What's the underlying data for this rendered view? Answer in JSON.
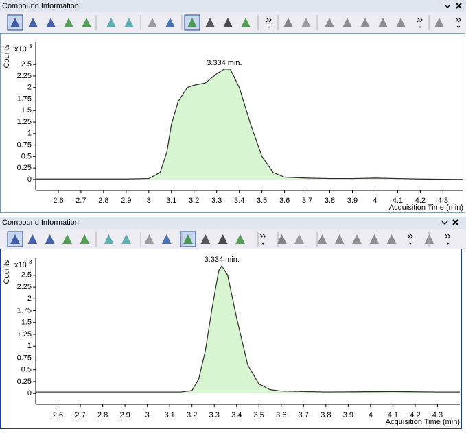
{
  "panels": [
    {
      "title": "Compound Information"
    },
    {
      "title": "Compound Information"
    }
  ],
  "chart_data": [
    {
      "type": "area",
      "y_label": "Counts",
      "y_scale_base": "x10",
      "y_scale_exponent": "3",
      "x_label": "Acquisition Time (min)",
      "peak_label": "3.334 min.",
      "color": "#2b2b2b",
      "fill": "#d6f5d0",
      "x": [
        2.5,
        2.9,
        3.0,
        3.05,
        3.08,
        3.1,
        3.13,
        3.17,
        3.2,
        3.25,
        3.3,
        3.334,
        3.36,
        3.4,
        3.45,
        3.5,
        3.55,
        3.6,
        3.7,
        3.8,
        3.9,
        4.0,
        4.1,
        4.2,
        4.39
      ],
      "values": [
        0.01,
        0.01,
        0.02,
        0.15,
        0.6,
        1.2,
        1.7,
        2.0,
        2.05,
        2.1,
        2.3,
        2.4,
        2.4,
        2.0,
        1.2,
        0.5,
        0.15,
        0.05,
        0.03,
        0.02,
        0.02,
        0.03,
        0.02,
        0.01,
        0.0
      ],
      "xlim": [
        2.5,
        4.39
      ],
      "ylim": [
        -0.24,
        2.98
      ],
      "xticks": [
        2.6,
        2.7,
        2.8,
        2.9,
        3,
        3.1,
        3.2,
        3.3,
        3.4,
        3.5,
        3.6,
        3.7,
        3.8,
        3.9,
        4,
        4.1,
        4.2,
        4.3
      ],
      "yticks": [
        0,
        0.25,
        0.5,
        0.75,
        1,
        1.25,
        1.5,
        1.75,
        2,
        2.25,
        2.5
      ]
    },
    {
      "type": "area",
      "y_label": "Counts",
      "y_scale_base": "x10",
      "y_scale_exponent": "3",
      "x_label": "Acquisition Time (min)",
      "peak_label": "3.334 min.",
      "color": "#2b2b2b",
      "fill": "#d6f5d0",
      "x": [
        2.5,
        3.15,
        3.2,
        3.23,
        3.26,
        3.29,
        3.32,
        3.334,
        3.36,
        3.4,
        3.45,
        3.5,
        3.55,
        3.6,
        3.8,
        4.1,
        4.3,
        4.4
      ],
      "values": [
        0.03,
        0.03,
        0.06,
        0.3,
        0.9,
        1.8,
        2.6,
        2.7,
        2.5,
        1.6,
        0.6,
        0.2,
        0.08,
        0.05,
        0.03,
        0.04,
        0.03,
        0.03
      ],
      "xlim": [
        2.5,
        4.4
      ],
      "ylim": [
        -0.23,
        2.86
      ],
      "xticks": [
        2.6,
        2.7,
        2.8,
        2.9,
        3,
        3.1,
        3.2,
        3.3,
        3.4,
        3.5,
        3.6,
        3.7,
        3.8,
        3.9,
        4,
        4.1,
        4.2,
        4.3
      ],
      "yticks": [
        0,
        0.25,
        0.5,
        0.75,
        1,
        1.25,
        1.5,
        1.75,
        2,
        2.25,
        2.5
      ]
    }
  ]
}
